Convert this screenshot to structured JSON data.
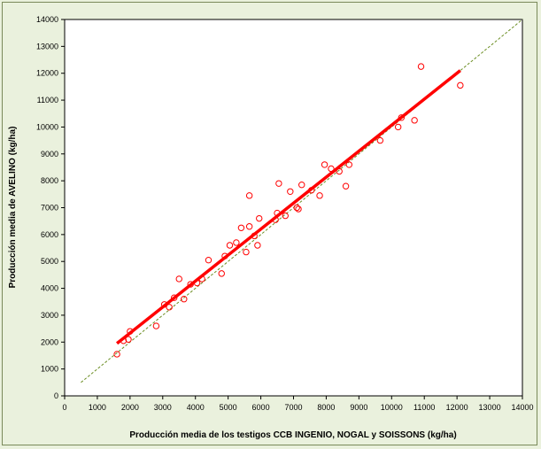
{
  "chart_data": {
    "type": "scatter",
    "title": "",
    "xlabel": "Producción media de los testigos CCB INGENIO, NOGAL y SOISSONS (kg/ha)",
    "ylabel": "Producción media de AVELINO (kg/ha)",
    "xlim": [
      0,
      14000
    ],
    "ylim": [
      0,
      14000
    ],
    "x_ticks": [
      0,
      1000,
      2000,
      3000,
      4000,
      5000,
      6000,
      7000,
      8000,
      9000,
      10000,
      11000,
      12000,
      13000,
      14000
    ],
    "y_ticks": [
      0,
      1000,
      2000,
      3000,
      4000,
      5000,
      6000,
      7000,
      8000,
      9000,
      10000,
      11000,
      12000,
      13000,
      14000
    ],
    "grid": false,
    "legend": "none",
    "colors": {
      "points": "#ff0000",
      "fit_line": "#ff0000",
      "reference_line": "#6b8e23",
      "plot_bg": "#ffffff",
      "frame_bg": "#eaf1dd"
    },
    "points": [
      [
        1600,
        1550
      ],
      [
        1800,
        2050
      ],
      [
        1950,
        2100
      ],
      [
        2000,
        2400
      ],
      [
        2800,
        2600
      ],
      [
        3050,
        3400
      ],
      [
        3200,
        3300
      ],
      [
        3350,
        3650
      ],
      [
        3500,
        4350
      ],
      [
        3650,
        3600
      ],
      [
        3850,
        4150
      ],
      [
        4050,
        4200
      ],
      [
        4200,
        4350
      ],
      [
        4400,
        5050
      ],
      [
        4800,
        4550
      ],
      [
        4900,
        5200
      ],
      [
        5050,
        5600
      ],
      [
        5250,
        5700
      ],
      [
        5400,
        6250
      ],
      [
        5550,
        5350
      ],
      [
        5650,
        6300
      ],
      [
        5650,
        7450
      ],
      [
        5800,
        5950
      ],
      [
        5900,
        5600
      ],
      [
        5950,
        6600
      ],
      [
        6450,
        6550
      ],
      [
        6500,
        6800
      ],
      [
        6550,
        7900
      ],
      [
        6750,
        6700
      ],
      [
        6900,
        7600
      ],
      [
        7100,
        7000
      ],
      [
        7150,
        6950
      ],
      [
        7250,
        7850
      ],
      [
        7550,
        7650
      ],
      [
        7800,
        7450
      ],
      [
        7950,
        8600
      ],
      [
        8150,
        8450
      ],
      [
        8400,
        8350
      ],
      [
        8600,
        7800
      ],
      [
        8700,
        8600
      ],
      [
        9650,
        9500
      ],
      [
        10200,
        10000
      ],
      [
        10300,
        10350
      ],
      [
        10700,
        10250
      ],
      [
        10900,
        12250
      ],
      [
        12100,
        11550
      ]
    ],
    "fit_line": [
      [
        1600,
        1950
      ],
      [
        12100,
        12100
      ]
    ],
    "reference_line": [
      [
        500,
        500
      ],
      [
        14000,
        14000
      ]
    ]
  }
}
